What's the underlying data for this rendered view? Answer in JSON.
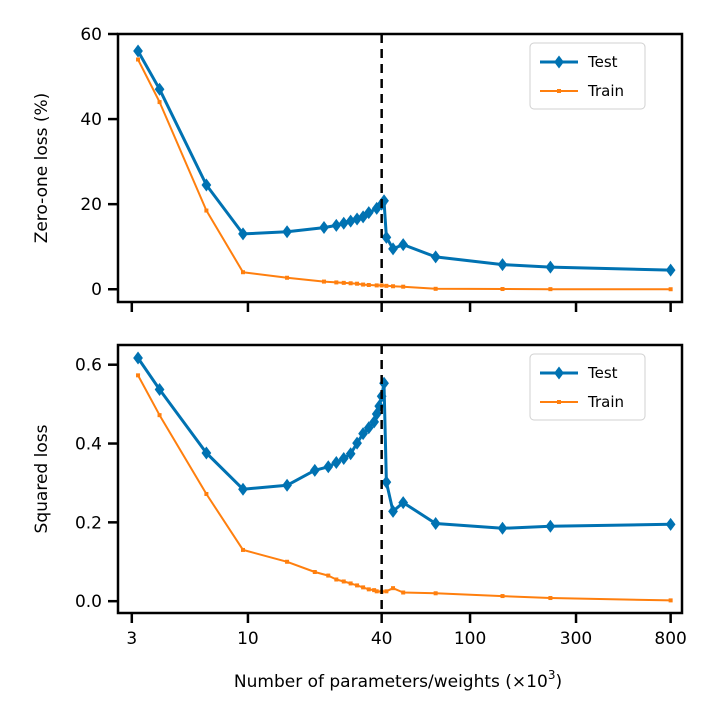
{
  "figure": {
    "xlabel_prefix": "Number of parameters/weights (×10",
    "xlabel_exponent": "3",
    "xlabel_suffix": ")"
  },
  "chart_data": [
    {
      "type": "line",
      "title": "",
      "xlabel": "Number of parameters/weights (×10^3)",
      "ylabel": "Zero-one loss (%)",
      "x_scale": "log",
      "xlim": [
        2.6,
        900
      ],
      "ylim": [
        -3,
        60
      ],
      "yticks": [
        0,
        20,
        40,
        60
      ],
      "ytick_labels": [
        "0",
        "20",
        "40",
        "60"
      ],
      "xticks": [
        3,
        10,
        40,
        100,
        300,
        800
      ],
      "xtick_labels_visible": false,
      "grid": false,
      "legend_position": "top-right",
      "interpolation_threshold": 40,
      "series": [
        {
          "name": "Test",
          "color": "#0072b2",
          "marker": "diamond",
          "x": [
            3.2,
            4,
            6.5,
            9.5,
            15,
            22,
            25,
            27,
            29,
            31,
            33,
            35,
            38,
            40,
            41,
            42,
            45,
            50,
            70,
            140,
            230,
            800
          ],
          "y": [
            56,
            47,
            24.5,
            13,
            13.5,
            14.5,
            15,
            15.5,
            16,
            16.5,
            17,
            18,
            19,
            20,
            20.8,
            12.2,
            9.5,
            10.5,
            7.6,
            5.8,
            5.2,
            4.5
          ]
        },
        {
          "name": "Train",
          "color": "#ff7f0e",
          "marker": "square",
          "x": [
            3.2,
            4,
            6.5,
            9.5,
            15,
            22,
            25,
            27,
            29,
            31,
            33,
            35,
            38,
            40,
            42,
            45,
            50,
            70,
            140,
            230,
            800
          ],
          "y": [
            54,
            44,
            18.5,
            4,
            2.7,
            1.8,
            1.6,
            1.5,
            1.4,
            1.3,
            1.1,
            1.0,
            0.9,
            0.9,
            0.8,
            0.7,
            0.6,
            0.1,
            0.05,
            0.02,
            0.0
          ]
        }
      ]
    },
    {
      "type": "line",
      "title": "",
      "xlabel": "Number of parameters/weights (×10^3)",
      "ylabel": "Squared loss",
      "x_scale": "log",
      "xlim": [
        2.6,
        900
      ],
      "ylim": [
        -0.03,
        0.65
      ],
      "yticks": [
        0.0,
        0.2,
        0.4,
        0.6
      ],
      "ytick_labels": [
        "0.0",
        "0.2",
        "0.4",
        "0.6"
      ],
      "xticks": [
        3,
        10,
        40,
        100,
        300,
        800
      ],
      "xtick_labels": [
        "3",
        "10",
        "40",
        "100",
        "300",
        "800"
      ],
      "grid": false,
      "legend_position": "top-right",
      "interpolation_threshold": 40,
      "series": [
        {
          "name": "Test",
          "color": "#0072b2",
          "marker": "diamond",
          "x": [
            3.2,
            4,
            6.5,
            9.5,
            15,
            20,
            23,
            25,
            27,
            29,
            31,
            33,
            35,
            37,
            38,
            39,
            40,
            41,
            42,
            45,
            50,
            70,
            140,
            230,
            800
          ],
          "y": [
            0.617,
            0.537,
            0.376,
            0.284,
            0.294,
            0.332,
            0.341,
            0.352,
            0.362,
            0.374,
            0.401,
            0.425,
            0.44,
            0.455,
            0.475,
            0.495,
            0.52,
            0.553,
            0.302,
            0.228,
            0.25,
            0.197,
            0.185,
            0.19,
            0.195
          ]
        },
        {
          "name": "Train",
          "color": "#ff7f0e",
          "marker": "square",
          "x": [
            3.2,
            4,
            6.5,
            9.5,
            15,
            20,
            23,
            25,
            27,
            29,
            31,
            33,
            35,
            37,
            38,
            40,
            42,
            45,
            50,
            70,
            140,
            230,
            800
          ],
          "y": [
            0.573,
            0.472,
            0.272,
            0.13,
            0.1,
            0.074,
            0.065,
            0.055,
            0.05,
            0.045,
            0.04,
            0.035,
            0.03,
            0.028,
            0.025,
            0.024,
            0.025,
            0.033,
            0.022,
            0.02,
            0.013,
            0.008,
            0.002
          ]
        }
      ]
    }
  ]
}
